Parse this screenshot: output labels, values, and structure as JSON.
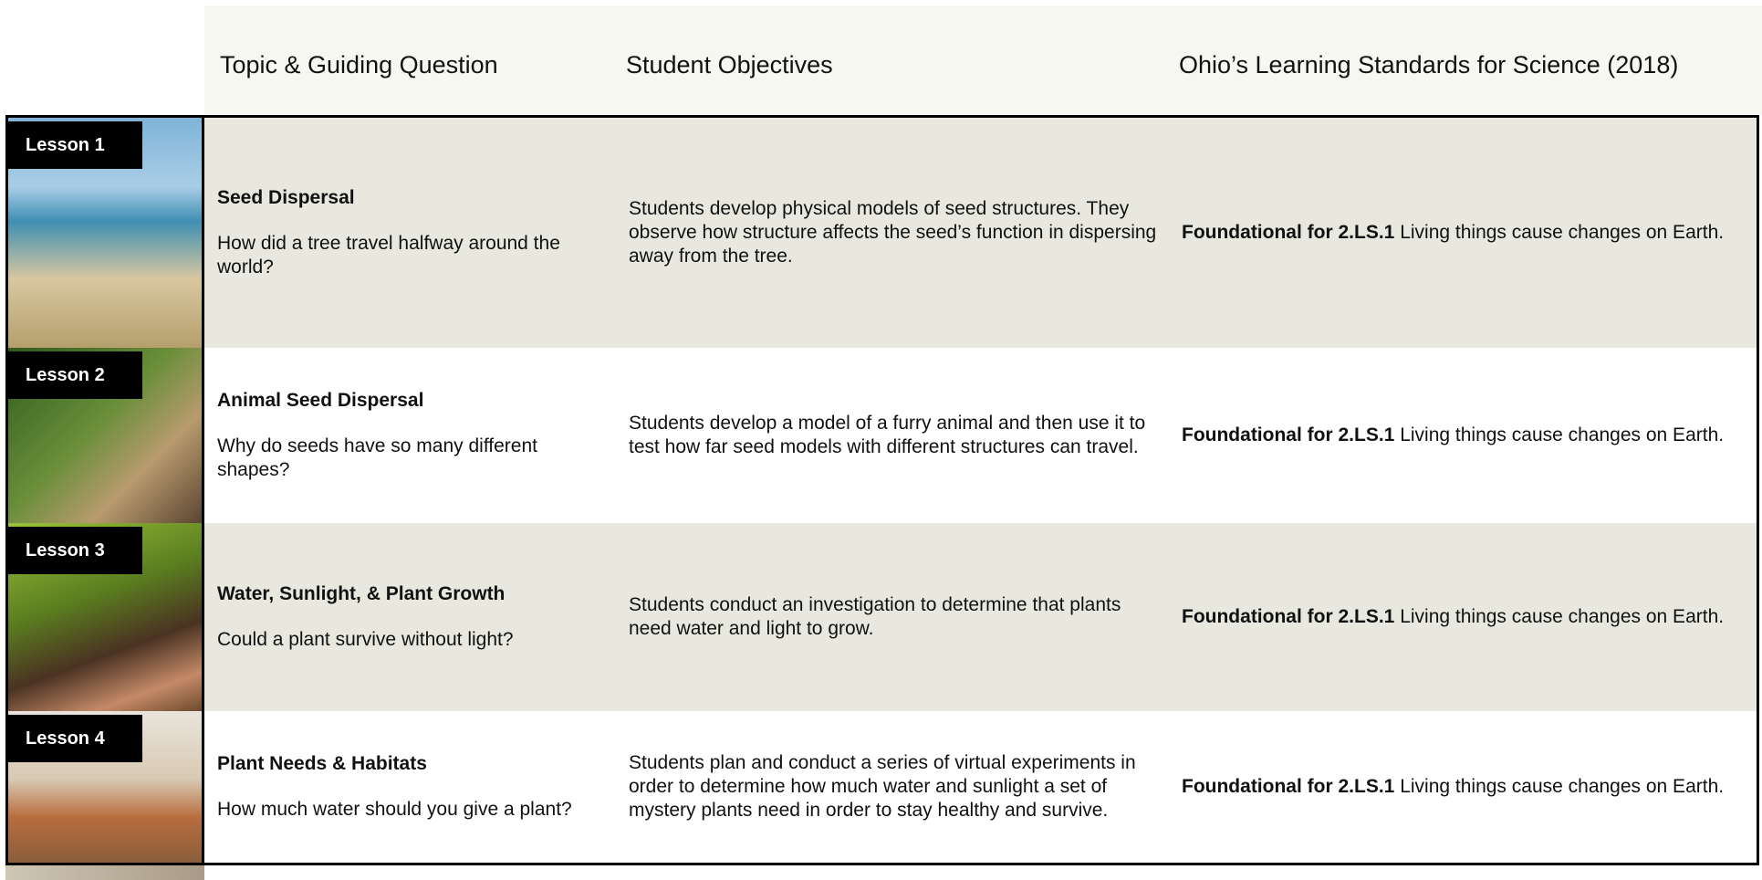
{
  "header": {
    "columns": [
      "Topic & Guiding Question",
      "Student Objectives",
      "Ohio’s Learning Standards for Science (2018)"
    ]
  },
  "lessons": [
    {
      "label": "Lesson 1",
      "topic": "Seed Dispersal",
      "question": "How did a tree travel halfway around the world?",
      "objectives": "Students develop physical models of seed structures. They observe how structure affects the seed’s function in dispersing away from the tree.",
      "standard_code": "Foundational for 2.LS.1",
      "standard_text": "Living things cause changes on Earth."
    },
    {
      "label": "Lesson 2",
      "topic": "Animal Seed Dispersal",
      "question": "Why do seeds have so many different shapes?",
      "objectives": "Students develop a model of a furry animal and then use it to test how far seed models with different structures can travel.",
      "standard_code": "Foundational for 2.LS.1",
      "standard_text": "Living things cause changes on Earth."
    },
    {
      "label": "Lesson 3",
      "topic": "Water, Sunlight, & Plant Growth",
      "question": "Could a plant survive without light?",
      "objectives": "Students conduct an investigation to determine that plants need water and light to grow.",
      "standard_code": "Foundational for 2.LS.1",
      "standard_text": "Living things cause changes on Earth."
    },
    {
      "label": "Lesson 4",
      "topic": "Plant Needs & Habitats",
      "question": "How much water should you give a plant?",
      "objectives": "Students  plan and conduct a series of virtual experiments in order to determine how much water and sunlight a set of mystery plants need in order to stay healthy and survive.",
      "standard_code": "Foundational for 2.LS.1",
      "standard_text": "Living things cause changes on Earth."
    }
  ]
}
